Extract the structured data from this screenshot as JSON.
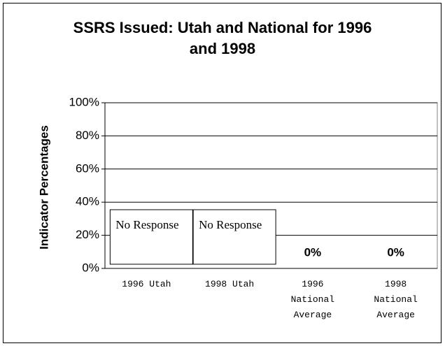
{
  "chart_data": {
    "type": "bar",
    "title": "SSRS Issued: Utah and National for 1996 and 1998",
    "y_label": "Indicator Percentages",
    "categories": [
      "1996 Utah",
      "1998 Utah",
      "1996 National Average",
      "1998 National Average"
    ],
    "values": [
      null,
      null,
      0,
      0
    ],
    "value_labels": [
      null,
      null,
      "0%",
      "0%"
    ],
    "annotations": [
      "No Response",
      "No Response"
    ],
    "ylim": [
      0,
      100
    ],
    "yticks": [
      {
        "value": 0,
        "label": "0%"
      },
      {
        "value": 20,
        "label": "20%"
      },
      {
        "value": 40,
        "label": "40%"
      },
      {
        "value": 60,
        "label": "60%"
      },
      {
        "value": 80,
        "label": "80%"
      },
      {
        "value": 100,
        "label": "100%"
      }
    ],
    "color": "#808080",
    "grid": true
  }
}
